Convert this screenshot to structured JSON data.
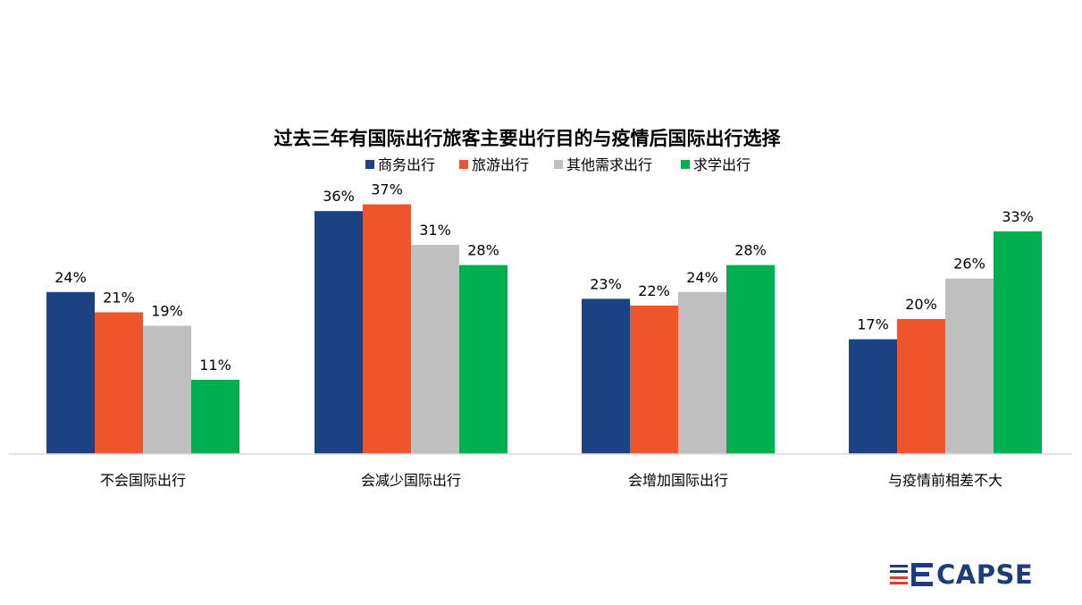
{
  "chart_data": {
    "type": "bar",
    "title": "过去三年有国际出行旅客主要出行目的与疫情后国际出行选择",
    "categories": [
      "不会国际出行",
      "会减少国际出行",
      "会增加国际出行",
      "与疫情前相差不大"
    ],
    "series": [
      {
        "name": "商务出行",
        "color": "#1b4282",
        "values": [
          24,
          36,
          23,
          17
        ]
      },
      {
        "name": "旅游出行",
        "color": "#ef552b",
        "values": [
          21,
          37,
          22,
          20
        ]
      },
      {
        "name": "其他需求出行",
        "color": "#bfbfbf",
        "values": [
          19,
          31,
          24,
          26
        ]
      },
      {
        "name": "求学出行",
        "color": "#00b050",
        "values": [
          11,
          28,
          28,
          33
        ]
      }
    ],
    "value_suffix": "%",
    "ylim": [
      0,
      40
    ],
    "grid": false,
    "legend_position": "top-center",
    "xlabel": "",
    "ylabel": ""
  },
  "logo": {
    "text": "CAPSE",
    "colors": {
      "navy": "#1b3d7f",
      "red": "#e03a30"
    }
  }
}
